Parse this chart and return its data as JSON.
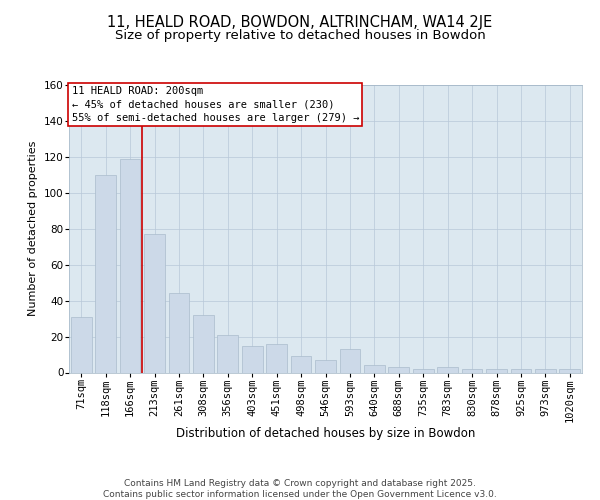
{
  "title": "11, HEALD ROAD, BOWDON, ALTRINCHAM, WA14 2JE",
  "subtitle": "Size of property relative to detached houses in Bowdon",
  "xlabel": "Distribution of detached houses by size in Bowdon",
  "ylabel": "Number of detached properties",
  "categories": [
    "71sqm",
    "118sqm",
    "166sqm",
    "213sqm",
    "261sqm",
    "308sqm",
    "356sqm",
    "403sqm",
    "451sqm",
    "498sqm",
    "546sqm",
    "593sqm",
    "640sqm",
    "688sqm",
    "735sqm",
    "783sqm",
    "830sqm",
    "878sqm",
    "925sqm",
    "973sqm",
    "1020sqm"
  ],
  "heights": [
    31,
    110,
    119,
    77,
    44,
    32,
    21,
    15,
    16,
    9,
    7,
    13,
    4,
    3,
    2,
    3,
    2,
    2,
    2,
    2,
    2
  ],
  "bar_color": "#ccd9e8",
  "bar_edge_color": "#aabccc",
  "vline_pos": 2.5,
  "vline_color": "#cc0000",
  "annotation_text": "11 HEALD ROAD: 200sqm\n← 45% of detached houses are smaller (230)\n55% of semi-detached houses are larger (279) →",
  "annotation_box_facecolor": "#ffffff",
  "annotation_box_edgecolor": "#cc0000",
  "ylim": [
    0,
    160
  ],
  "yticks": [
    0,
    20,
    40,
    60,
    80,
    100,
    120,
    140,
    160
  ],
  "plot_bg_color": "#dce8f0",
  "footer_text": "Contains HM Land Registry data © Crown copyright and database right 2025.\nContains public sector information licensed under the Open Government Licence v3.0.",
  "title_fontsize": 10.5,
  "subtitle_fontsize": 9.5,
  "xlabel_fontsize": 8.5,
  "ylabel_fontsize": 8,
  "tick_fontsize": 7.5,
  "annotation_fontsize": 7.5,
  "footer_fontsize": 6.5
}
